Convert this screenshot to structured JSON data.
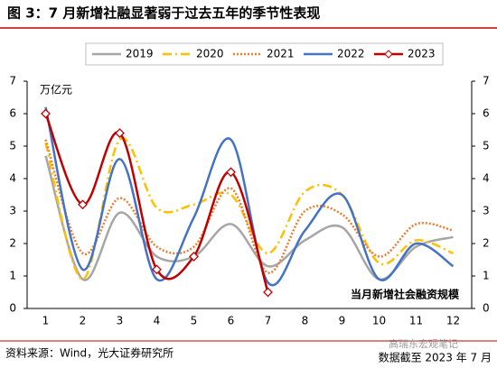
{
  "chart_data": {
    "type": "line",
    "title": "图 3：7 月新增社融显著弱于过去五年的季节性表现",
    "y_label": "万亿元",
    "annotation": "当月新增社会融资规模",
    "source": "资料来源：Wind，光大证券研究所",
    "note": "数据截至 2023 年 7 月",
    "watermark": "高瑞东宏观笔记",
    "categories": [
      "1",
      "2",
      "3",
      "4",
      "5",
      "6",
      "7",
      "8",
      "9",
      "10",
      "11",
      "12"
    ],
    "series": [
      {
        "name": "2019",
        "color": "#a6a6a6",
        "style": "solid",
        "values": [
          4.7,
          0.9,
          2.95,
          1.6,
          1.6,
          2.6,
          1.3,
          2.1,
          2.5,
          0.9,
          1.9,
          2.2
        ]
      },
      {
        "name": "2020",
        "color": "#ffc000",
        "style": "dashdot",
        "values": [
          5.1,
          0.9,
          5.2,
          3.1,
          3.2,
          3.5,
          1.7,
          3.6,
          3.5,
          1.4,
          2.1,
          1.7
        ]
      },
      {
        "name": "2021",
        "color": "#ed7d31",
        "style": "dotted",
        "values": [
          5.2,
          1.7,
          3.4,
          1.9,
          1.9,
          3.7,
          1.1,
          3.0,
          2.9,
          1.6,
          2.6,
          2.4
        ]
      },
      {
        "name": "2022",
        "color": "#4472c4",
        "style": "solid",
        "values": [
          6.2,
          1.2,
          4.6,
          0.9,
          2.8,
          5.2,
          0.8,
          2.4,
          3.5,
          0.9,
          2.0,
          1.3
        ]
      },
      {
        "name": "2023",
        "color": "#c00000",
        "style": "solid",
        "marker": "diamond",
        "values": [
          6.0,
          3.2,
          5.4,
          1.2,
          1.6,
          4.2,
          0.5,
          null,
          null,
          null,
          null,
          null
        ]
      }
    ],
    "ylim": [
      0,
      7
    ],
    "yticks": [
      0,
      1,
      2,
      3,
      4,
      5,
      6,
      7
    ],
    "y2lim": [
      0,
      7
    ],
    "y2ticks": [
      0,
      1,
      2,
      3,
      4,
      5,
      6,
      7
    ]
  }
}
